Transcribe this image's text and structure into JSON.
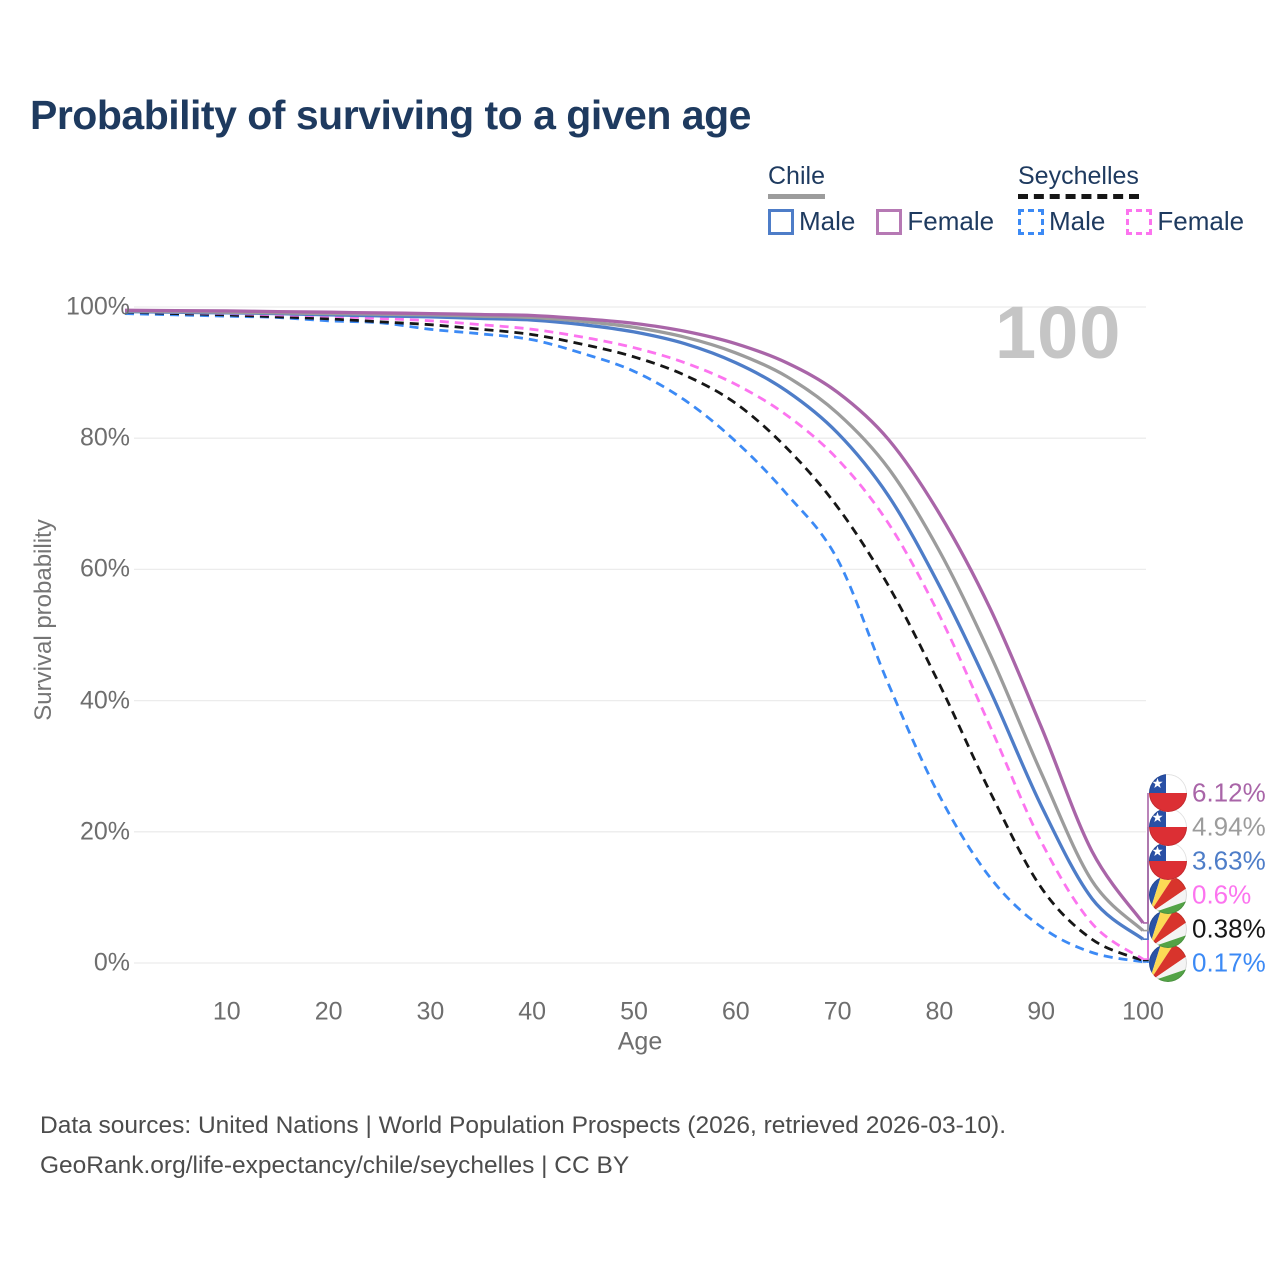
{
  "header": {
    "title": "Probability of surviving to a given age"
  },
  "legend": {
    "groups": [
      {
        "id": "chile",
        "label": "Chile",
        "line_style": "solid",
        "line_color": "#9c9c9c",
        "items": [
          {
            "id": "chile-male",
            "label": "Male",
            "color": "#4e7dc8",
            "dashed": false
          },
          {
            "id": "chile-female",
            "label": "Female",
            "color": "#b679b4",
            "dashed": false
          }
        ]
      },
      {
        "id": "seychelles",
        "label": "Seychelles",
        "line_style": "dashed",
        "line_color": "#161616",
        "items": [
          {
            "id": "seychelles-male",
            "label": "Male",
            "color": "#3c8af5",
            "dashed": true
          },
          {
            "id": "seychelles-female",
            "label": "Female",
            "color": "#fc74ef",
            "dashed": true
          }
        ]
      }
    ]
  },
  "chart_data": {
    "type": "line",
    "title": "Probability of surviving to a given age",
    "xlabel": "Age",
    "ylabel": "Survival probability",
    "xlim": [
      0,
      100
    ],
    "ylim": [
      0,
      100
    ],
    "x_ticks": [
      10,
      20,
      30,
      40,
      50,
      60,
      70,
      80,
      90,
      100
    ],
    "y_ticks": [
      0,
      20,
      40,
      60,
      80,
      100
    ],
    "y_tick_labels": [
      "0%",
      "20%",
      "40%",
      "60%",
      "80%",
      "100%"
    ],
    "grid": "horizontal",
    "legend_position": "top-right",
    "watermark": "100",
    "x": [
      0,
      5,
      10,
      15,
      20,
      25,
      30,
      35,
      40,
      45,
      50,
      55,
      60,
      65,
      70,
      75,
      80,
      85,
      90,
      95,
      100
    ],
    "series": [
      {
        "id": "seychelles-male",
        "name": "Seychelles Male",
        "country": "Seychelles",
        "sex": "Male",
        "color": "#3c8af5",
        "dashed": true,
        "flag": "seychelles",
        "end_label": "0.17%",
        "end_value": 0.17,
        "label_slot": 5,
        "values": [
          99.0,
          98.8,
          98.6,
          98.4,
          97.9,
          97.6,
          96.6,
          95.9,
          95.0,
          92.9,
          90.2,
          85.8,
          79.5,
          71.5,
          61.5,
          42.5,
          25.5,
          13.0,
          5.5,
          1.6,
          0.17
        ]
      },
      {
        "id": "seychelles-all",
        "name": "Seychelles Both sexes",
        "country": "Seychelles",
        "sex": "Both sexes",
        "color": "#161616",
        "dashed": true,
        "flag": "seychelles",
        "end_label": "0.38%",
        "end_value": 0.38,
        "label_slot": 4,
        "values": [
          99.2,
          99.0,
          98.8,
          98.5,
          98.2,
          97.75,
          97.3,
          96.6,
          95.8,
          94.3,
          92.4,
          89.6,
          85.3,
          78.5,
          69.5,
          57.5,
          42.5,
          26.0,
          11.5,
          3.6,
          0.38
        ]
      },
      {
        "id": "seychelles-female",
        "name": "Seychelles Female",
        "country": "Seychelles",
        "sex": "Female",
        "color": "#fc74ef",
        "dashed": true,
        "flag": "seychelles",
        "end_label": "0.6%",
        "end_value": 0.6,
        "label_slot": 3,
        "values": [
          99.3,
          99.15,
          99.0,
          98.8,
          98.6,
          98.25,
          97.9,
          97.3,
          96.6,
          95.4,
          93.8,
          91.5,
          88.2,
          83.5,
          76.8,
          67.0,
          53.0,
          36.0,
          18.5,
          6.0,
          0.6
        ]
      },
      {
        "id": "chile-male",
        "name": "Chile Male",
        "country": "Chile",
        "sex": "Male",
        "color": "#4e7dc8",
        "dashed": false,
        "flag": "chile",
        "end_label": "3.63%",
        "end_value": 3.63,
        "label_slot": 2,
        "values": [
          99.3,
          99.2,
          99.1,
          99.0,
          98.8,
          98.65,
          98.5,
          98.25,
          98.0,
          97.3,
          96.2,
          94.4,
          91.5,
          87.2,
          80.8,
          71.2,
          57.5,
          41.5,
          24.0,
          9.8,
          3.63
        ]
      },
      {
        "id": "chile-all",
        "name": "Chile Both sexes",
        "country": "Chile",
        "sex": "Both sexes",
        "color": "#9c9c9c",
        "dashed": false,
        "flag": "chile",
        "end_label": "4.94%",
        "end_value": 4.94,
        "label_slot": 1,
        "values": [
          99.4,
          99.3,
          99.2,
          99.1,
          99.0,
          98.9,
          98.8,
          98.6,
          98.4,
          97.8,
          96.9,
          95.4,
          93.0,
          89.4,
          83.8,
          75.4,
          62.8,
          47.0,
          29.0,
          12.5,
          4.94
        ]
      },
      {
        "id": "chile-female",
        "name": "Chile Female",
        "country": "Chile",
        "sex": "Female",
        "color": "#a965a8",
        "dashed": false,
        "flag": "chile",
        "end_label": "6.12%",
        "end_value": 6.12,
        "label_slot": 0,
        "values": [
          99.5,
          99.45,
          99.4,
          99.3,
          99.2,
          99.1,
          99.0,
          98.85,
          98.7,
          98.2,
          97.5,
          96.3,
          94.4,
          91.5,
          87.0,
          79.8,
          68.5,
          54.0,
          36.0,
          17.0,
          6.12
        ]
      }
    ]
  },
  "flag_colors": {
    "chile": {
      "blue": "#2950a5",
      "red": "#dc2f34",
      "white": "#ffffff"
    },
    "seychelles": {
      "blue": "#2953a6",
      "yellow": "#fcd955",
      "red": "#d8342c",
      "white": "#f4f4f4",
      "green": "#53a346"
    }
  },
  "footer": {
    "line1": "Data sources: United Nations | World Population Prospects (2026, retrieved 2026-03-10).",
    "line2": "GeoRank.org/life-expectancy/chile/seychelles | CC BY"
  }
}
